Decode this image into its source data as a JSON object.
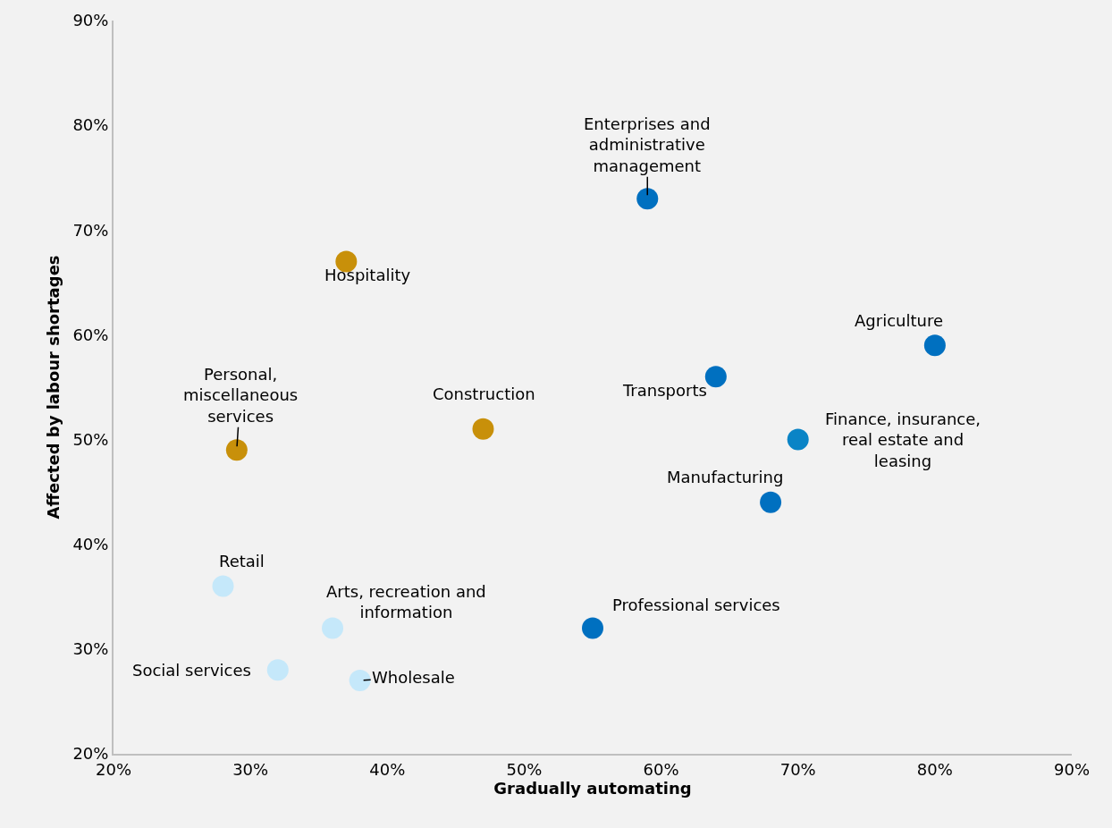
{
  "chart_data": {
    "type": "scatter",
    "xlabel": "Gradually automating",
    "ylabel": "Affected by labour shortages",
    "x": [
      59,
      37,
      80,
      64,
      29,
      47,
      70,
      68,
      28,
      36,
      55,
      32,
      38
    ],
    "values": [
      73,
      67,
      59,
      56,
      49,
      51,
      50,
      44,
      36,
      32,
      32,
      28,
      27
    ],
    "colors": [
      "#0070c0",
      "#c8900a",
      "#0070c0",
      "#0070c0",
      "#c8900a",
      "#c8900a",
      "#0a84c6",
      "#0070c0",
      "#c5e8fa",
      "#c5e8fa",
      "#0070c0",
      "#c5e8fa",
      "#c5e8fa"
    ],
    "marker": "circle",
    "xlim": [
      20,
      90
    ],
    "xticks": [
      {
        "value": 20,
        "label": "20%"
      },
      {
        "value": 30,
        "label": "30%"
      },
      {
        "value": 40,
        "label": "40%"
      },
      {
        "value": 50,
        "label": "50%"
      },
      {
        "value": 60,
        "label": "60%"
      },
      {
        "value": 70,
        "label": "70%"
      },
      {
        "value": 80,
        "label": "80%"
      },
      {
        "value": 90,
        "label": "90%"
      }
    ],
    "ylim": [
      20,
      90
    ],
    "yticks": [
      {
        "value": 20,
        "label": "20%"
      },
      {
        "value": 30,
        "label": "30%"
      },
      {
        "value": 40,
        "label": "40%"
      },
      {
        "value": 50,
        "label": "50%"
      },
      {
        "value": 60,
        "label": "60%"
      },
      {
        "value": 70,
        "label": "70%"
      },
      {
        "value": 80,
        "label": "80%"
      },
      {
        "value": 90,
        "label": "90%"
      }
    ],
    "grid": false,
    "legend": false,
    "annotations": [
      {
        "text": "Enterprises and\nadministrative\nmanagement",
        "x": 59,
        "y": 73
      },
      {
        "text": "Hospitality",
        "x": 37,
        "y": 67
      },
      {
        "text": "Agriculture",
        "x": 80,
        "y": 59
      },
      {
        "text": "Transports",
        "x": 64,
        "y": 56
      },
      {
        "text": "Personal,\nmiscellaneous\nservices",
        "x": 29,
        "y": 49
      },
      {
        "text": "Construction",
        "x": 47,
        "y": 51
      },
      {
        "text": "Finance, insurance,\nreal estate and\nleasing",
        "x": 70,
        "y": 50
      },
      {
        "text": "Manufacturing",
        "x": 68,
        "y": 44
      },
      {
        "text": "Retail",
        "x": 28,
        "y": 36
      },
      {
        "text": "Arts, recreation and\ninformation",
        "x": 36,
        "y": 32
      },
      {
        "text": "Professional services",
        "x": 55,
        "y": 32
      },
      {
        "text": "Social services",
        "x": 32,
        "y": 28
      },
      {
        "text": "Wholesale",
        "x": 38,
        "y": 27
      }
    ]
  }
}
